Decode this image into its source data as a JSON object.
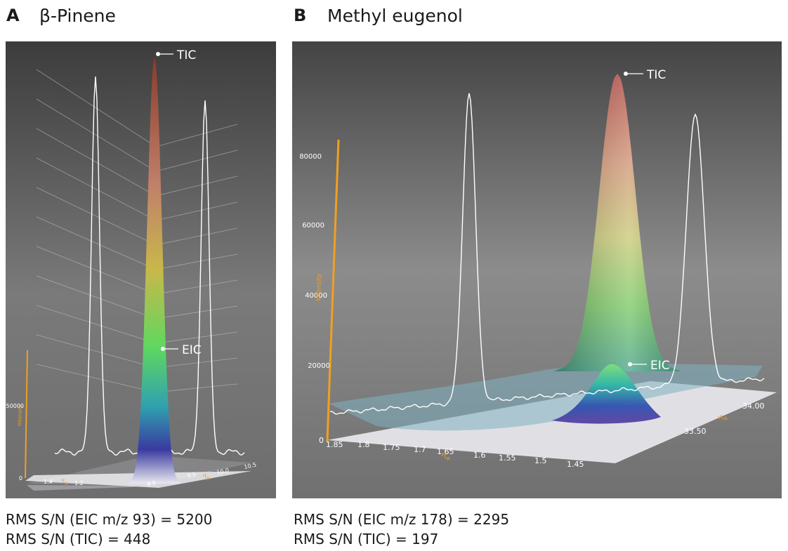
{
  "chart_data": [
    {
      "type": "surface3d",
      "panel_label": "A",
      "title": "β-Pinene",
      "stats": [
        "RMS S/N (EIC m/z 93) = 5200",
        "RMS S/N (TIC) = 448"
      ],
      "peak_labels": {
        "tic": "TIC",
        "eic": "EIC"
      },
      "axes": {
        "y": {
          "label": "Intensity",
          "ticks": [
            "0",
            "50000"
          ]
        },
        "x1": {
          "label": "¹t",
          "sub": "R",
          "ticks": [
            "1.4",
            "1.2"
          ]
        },
        "x2": {
          "label": "²t",
          "sub": "R",
          "ticks": [
            "9.0",
            "9.5",
            "10.0",
            "10.5"
          ]
        }
      },
      "colors": {
        "background": "#5a5a5a",
        "axis": "#f0a020",
        "trace": "#ffffff"
      }
    },
    {
      "type": "surface3d",
      "panel_label": "B",
      "title": "Methyl eugenol",
      "stats": [
        "RMS S/N (EIC m/z 178) = 2295",
        "RMS S/N (TIC) = 197"
      ],
      "peak_labels": {
        "tic": "TIC",
        "eic": "EIC"
      },
      "axes": {
        "y": {
          "label": "Intensity",
          "ticks": [
            "0",
            "20000",
            "40000",
            "60000",
            "80000"
          ]
        },
        "x1": {
          "label": "²t",
          "sub": "R",
          "ticks": [
            "1.85",
            "1.8",
            "1.75",
            "1.7",
            "1.65",
            "1.6",
            "1.55",
            "1.5",
            "1.45"
          ]
        },
        "x2": {
          "label": "¹t",
          "sub": "R",
          "ticks": [
            "33.50",
            "34.00"
          ]
        }
      },
      "colors": {
        "background": "#6a6a6a",
        "axis": "#f0a020",
        "trace": "#ffffff"
      }
    }
  ]
}
